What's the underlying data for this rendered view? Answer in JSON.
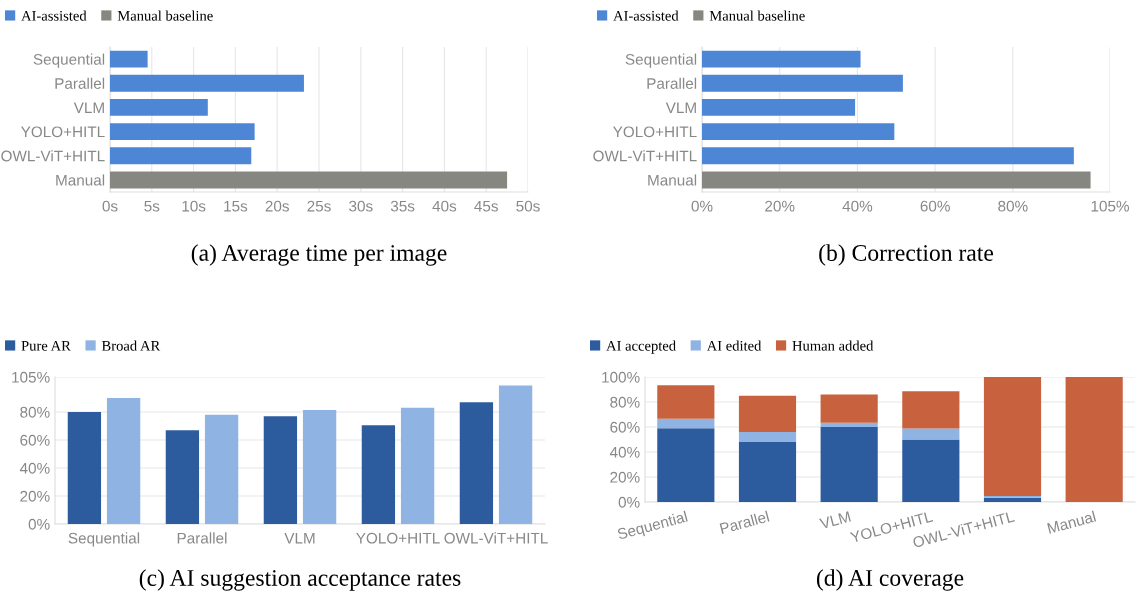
{
  "chart_data": [
    {
      "type": "bar",
      "title": "(a) Average time per image",
      "orientation": "horizontal",
      "stacked": true,
      "legend": "top left",
      "grid": "x",
      "categories": [
        "Sequential",
        "Parallel",
        "VLM",
        "YOLO+HITL",
        "OWL-ViT+HITL",
        "Manual"
      ],
      "series": [
        {
          "name": "AI-assisted",
          "color": "#4e86d6",
          "values": [
            4.5,
            23.2,
            11.7,
            17.3,
            16.9,
            null
          ]
        },
        {
          "name": "Manual baseline",
          "color": "#878782",
          "values": [
            null,
            null,
            null,
            null,
            null,
            47.5
          ]
        }
      ],
      "xlim": [
        0,
        50
      ],
      "xticks": [
        {
          "value": 0,
          "label": "0s"
        },
        {
          "value": 5,
          "label": "5s"
        },
        {
          "value": 10,
          "label": "10s"
        },
        {
          "value": 15,
          "label": "15s"
        },
        {
          "value": 20,
          "label": "20s"
        },
        {
          "value": 25,
          "label": "25s"
        },
        {
          "value": 30,
          "label": "30s"
        },
        {
          "value": 35,
          "label": "35s"
        },
        {
          "value": 40,
          "label": "40s"
        },
        {
          "value": 45,
          "label": "45s"
        },
        {
          "value": 50,
          "label": "50s"
        }
      ]
    },
    {
      "type": "bar",
      "title": "(b) Correction rate",
      "orientation": "horizontal",
      "stacked": true,
      "legend": "top left",
      "grid": "x",
      "categories": [
        "Sequential",
        "Parallel",
        "VLM",
        "YOLO+HITL",
        "OWL-ViT+HITL",
        "Manual"
      ],
      "series": [
        {
          "name": "AI-assisted",
          "color": "#4e86d6",
          "values": [
            40.8,
            51.7,
            39.4,
            49.5,
            95.7,
            null
          ]
        },
        {
          "name": "Manual baseline",
          "color": "#878782",
          "values": [
            null,
            null,
            null,
            null,
            null,
            100
          ]
        }
      ],
      "xlim": [
        0,
        105
      ],
      "xticks": [
        {
          "value": 0,
          "label": "0%"
        },
        {
          "value": 20,
          "label": "20%"
        },
        {
          "value": 40,
          "label": "40%"
        },
        {
          "value": 60,
          "label": "60%"
        },
        {
          "value": 80,
          "label": "80%"
        },
        {
          "value": 105,
          "label": "105%"
        }
      ]
    },
    {
      "type": "bar",
      "title": "(c) AI suggestion acceptance rates",
      "legend": "top left",
      "grid": "y",
      "categories": [
        "Sequential",
        "Parallel",
        "VLM",
        "YOLO+HITL",
        "OWL-ViT+HITL"
      ],
      "series": [
        {
          "name": "Pure AR",
          "color": "#2d5c9e",
          "values": [
            80,
            67,
            77,
            70.5,
            87
          ]
        },
        {
          "name": "Broad AR",
          "color": "#8fb3e3",
          "values": [
            90,
            78,
            81.5,
            83,
            99
          ]
        }
      ],
      "ylim": [
        0,
        105
      ],
      "yticks": [
        {
          "value": 0,
          "label": "0%"
        },
        {
          "value": 20,
          "label": "20%"
        },
        {
          "value": 40,
          "label": "40%"
        },
        {
          "value": 60,
          "label": "60%"
        },
        {
          "value": 80,
          "label": "80%"
        },
        {
          "value": 105,
          "label": "105%"
        }
      ]
    },
    {
      "type": "bar",
      "title": "(d) AI coverage",
      "stacked": true,
      "legend": "top left",
      "grid": "y",
      "categories": [
        "Sequential",
        "Parallel",
        "VLM",
        "YOLO+HITL",
        "OWL-ViT+HITL",
        "Manual"
      ],
      "series": [
        {
          "name": "AI accepted",
          "color": "#2d5c9e",
          "values": [
            59,
            48,
            60,
            50,
            3.5,
            0
          ]
        },
        {
          "name": "AI edited",
          "color": "#8fb3e3",
          "values": [
            7.5,
            8,
            3.5,
            8.8,
            1.2,
            0
          ]
        },
        {
          "name": "Human added",
          "color": "#c8623e",
          "values": [
            27,
            29,
            22.5,
            29.8,
            95.3,
            100
          ]
        }
      ],
      "ylim": [
        0,
        100
      ],
      "yticks": [
        {
          "value": 0,
          "label": "0%"
        },
        {
          "value": 20,
          "label": "20%"
        },
        {
          "value": 40,
          "label": "40%"
        },
        {
          "value": 60,
          "label": "60%"
        },
        {
          "value": 80,
          "label": "80%"
        },
        {
          "value": 100,
          "label": "100%"
        }
      ]
    }
  ]
}
